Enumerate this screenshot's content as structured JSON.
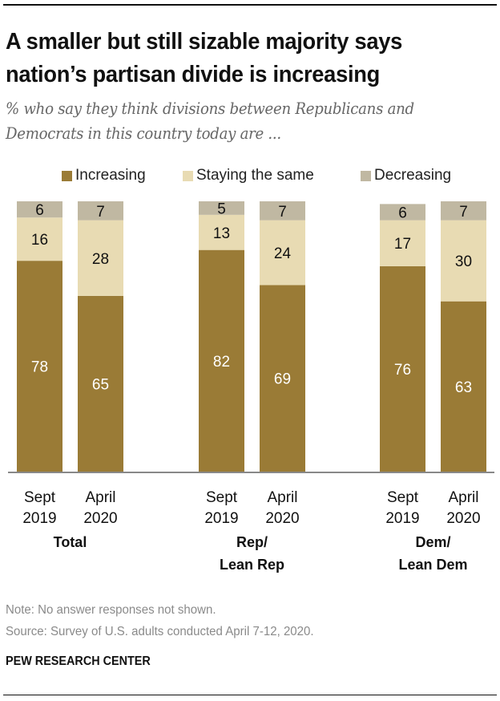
{
  "header": {
    "title_line1": "A smaller but still sizable majority says",
    "title_line2": "nation’s partisan divide is increasing",
    "subtitle_line1": "% who say they think divisions between Republicans and",
    "subtitle_line2": "Democrats in this country today are ..."
  },
  "colors": {
    "increasing": "#9a7b36",
    "staying_same": "#e8dbb3",
    "decreasing": "#c0b8a2",
    "axis": "#888888"
  },
  "chart_data": {
    "type": "bar",
    "stacked": true,
    "orientation": "vertical",
    "title": "A smaller but still sizable majority says nation’s partisan divide is increasing",
    "subtitle": "% who say they think divisions between Republicans and Democrats in this country today are ...",
    "legend": {
      "position": "top",
      "entries": [
        "Increasing",
        "Staying the same",
        "Decreasing"
      ]
    },
    "groups": [
      {
        "label_line1": "Total",
        "label_line2": "",
        "bars": [
          {
            "x_line1": "Sept",
            "x_line2": "2019",
            "increasing": 78,
            "staying_same": 16,
            "decreasing": 6
          },
          {
            "x_line1": "April",
            "x_line2": "2020",
            "increasing": 65,
            "staying_same": 28,
            "decreasing": 7
          }
        ]
      },
      {
        "label_line1": "Rep/",
        "label_line2": "Lean Rep",
        "bars": [
          {
            "x_line1": "Sept",
            "x_line2": "2019",
            "increasing": 82,
            "staying_same": 13,
            "decreasing": 5
          },
          {
            "x_line1": "April",
            "x_line2": "2020",
            "increasing": 69,
            "staying_same": 24,
            "decreasing": 7
          }
        ]
      },
      {
        "label_line1": "Dem/",
        "label_line2": "Lean Dem",
        "bars": [
          {
            "x_line1": "Sept",
            "x_line2": "2019",
            "increasing": 76,
            "staying_same": 17,
            "decreasing": 6
          },
          {
            "x_line1": "April",
            "x_line2": "2020",
            "increasing": 63,
            "staying_same": 30,
            "decreasing": 7
          }
        ]
      }
    ],
    "series": [
      {
        "name": "Increasing",
        "key": "increasing",
        "values": [
          78,
          65,
          82,
          69,
          76,
          63
        ]
      },
      {
        "name": "Staying the same",
        "key": "staying_same",
        "values": [
          16,
          28,
          13,
          24,
          17,
          30
        ]
      },
      {
        "name": "Decreasing",
        "key": "decreasing",
        "values": [
          6,
          7,
          5,
          7,
          6,
          7
        ]
      }
    ],
    "ylim": [
      0,
      100
    ],
    "grid": false,
    "xlabel": "",
    "ylabel": ""
  },
  "footer": {
    "note": "Note: No answer responses not shown.",
    "source": "Source: Survey of U.S. adults conducted April 7-12, 2020.",
    "brand": "PEW RESEARCH CENTER"
  }
}
